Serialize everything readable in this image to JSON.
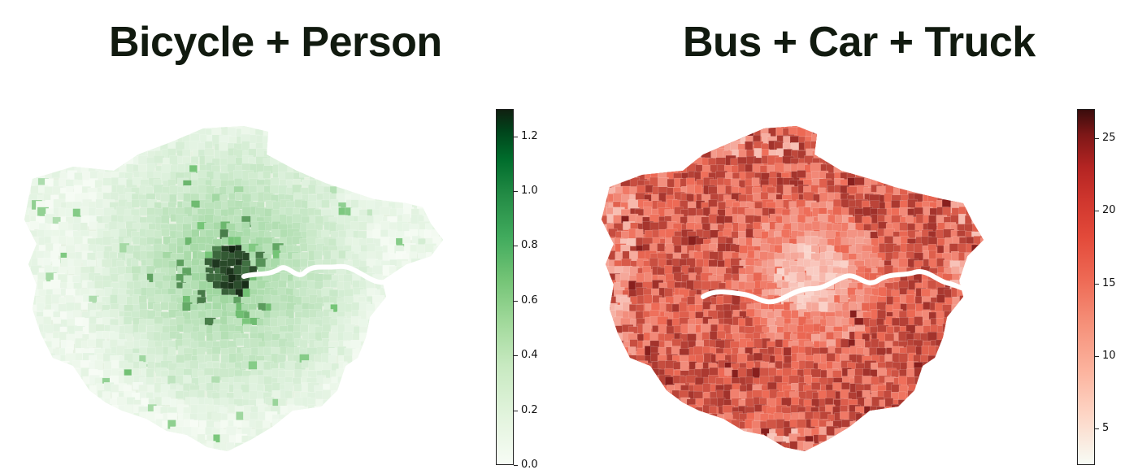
{
  "panels": [
    {
      "title": "Bicycle + Person",
      "colormap": "greens",
      "colorbar": {
        "min": 0.0,
        "max": 1.3,
        "ticks": [
          "0.0",
          "0.2",
          "0.4",
          "0.6",
          "0.8",
          "1.0",
          "1.2"
        ]
      },
      "colors": {
        "low": "#f7fcf5",
        "mid": "#74c476",
        "high": "#102010",
        "base": "#e6f2e1"
      }
    },
    {
      "title": "Bus + Car + Truck",
      "colormap": "reds",
      "colorbar": {
        "min": 2.5,
        "max": 27,
        "ticks": [
          "5",
          "10",
          "15",
          "20",
          "25"
        ]
      },
      "colors": {
        "low": "#fdece6",
        "mid": "#ee6a55",
        "high": "#7d1717",
        "base": "#ec6a55"
      }
    }
  ]
}
